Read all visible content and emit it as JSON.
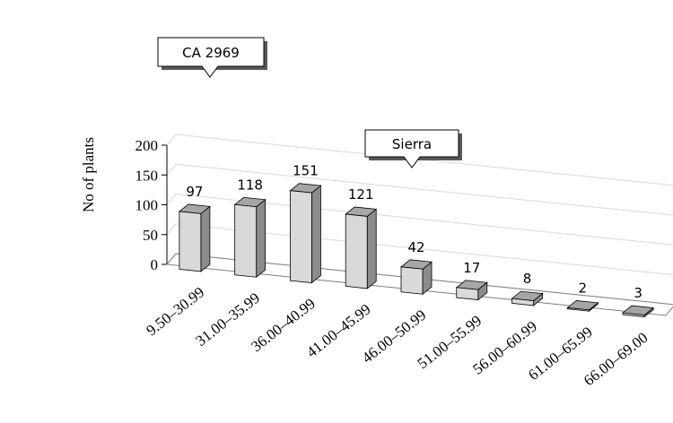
{
  "chart_data": {
    "type": "bar",
    "categories": [
      "9.50–30.99",
      "31.00–35.99",
      "36.00–40.99",
      "41.00–45.99",
      "46.00–50.99",
      "51.00–55.99",
      "56.00–60.99",
      "61.00–65.99",
      "66.00–69.00"
    ],
    "values": [
      97,
      118,
      151,
      121,
      42,
      17,
      8,
      2,
      3
    ],
    "title": "",
    "xlabel": "",
    "ylabel": "No of plants",
    "ylim": [
      0,
      200
    ],
    "yticks": [
      "0",
      "50",
      "100",
      "150",
      "200"
    ],
    "grid": true,
    "style": "3d-column",
    "annotations": [
      {
        "text": "CA 2969",
        "category": "9.50–30.99"
      },
      {
        "text": "Sierra",
        "category": "46.00–50.99"
      }
    ],
    "colors": {
      "bar_face": "#d9d9d9",
      "bar_side": "#8c8c8c",
      "bar_top": "#a6a6a6",
      "grid": "#d9d9d9"
    }
  }
}
